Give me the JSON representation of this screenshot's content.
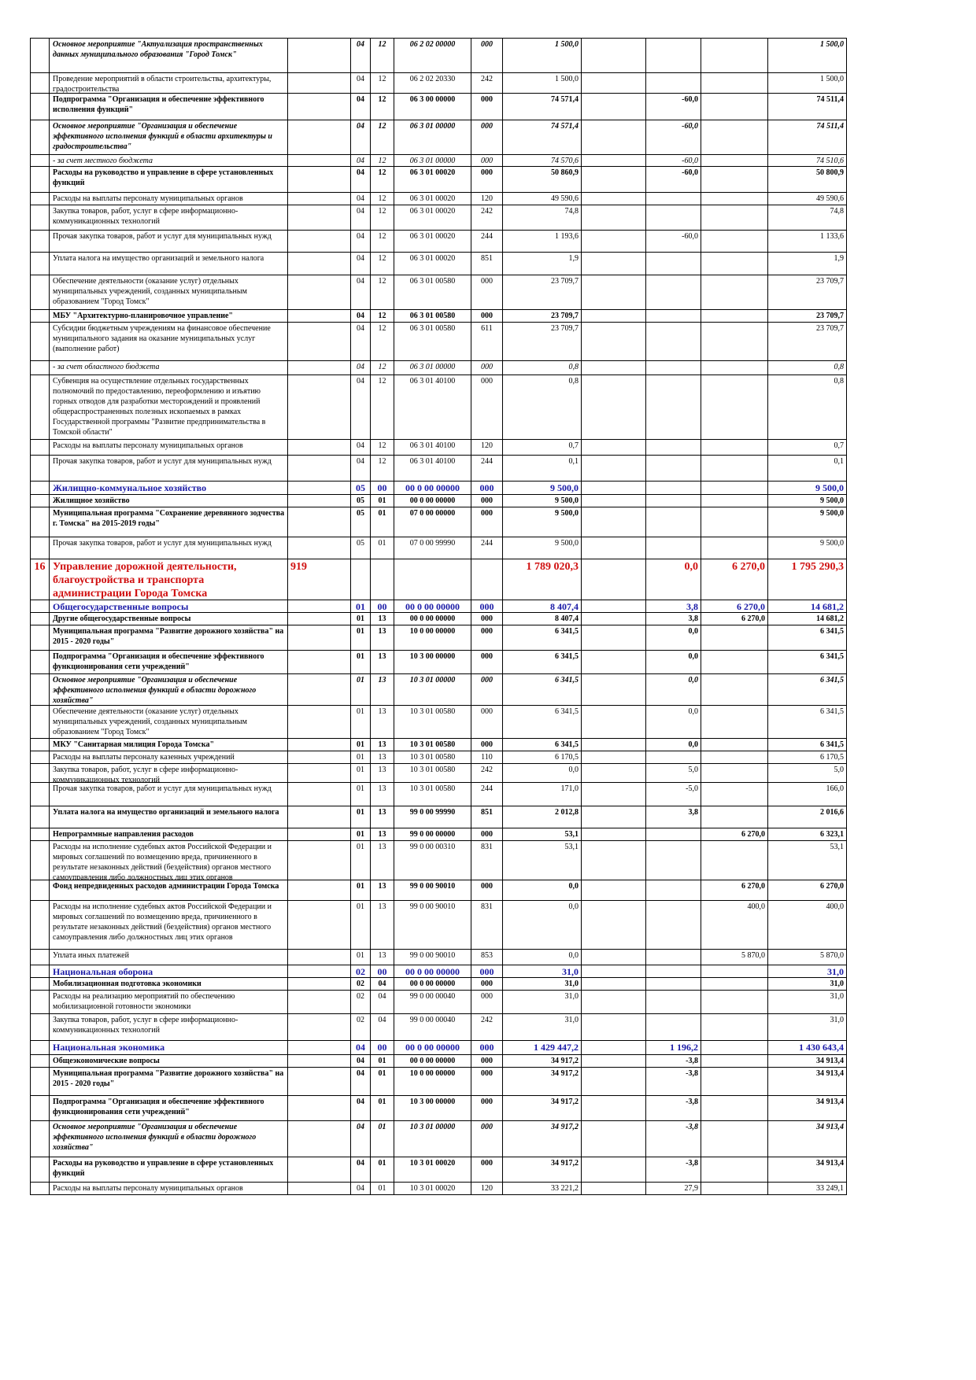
{
  "table": {
    "rows": [
      [
        null,
        "Основное мероприятие \"Актуализация пространственных данных муниципального образования \"Город Томск\"",
        null,
        "04",
        "12",
        "06 2 02 00000",
        "000",
        "1 500,0",
        null,
        null,
        null,
        "1 500,0"
      ],
      [
        null,
        "Проведение мероприятий в области строительства, архитектуры, градостроительства",
        null,
        "04",
        "12",
        "06 2 02 20330",
        "242",
        "1 500,0",
        null,
        null,
        null,
        "1 500,0"
      ],
      [
        null,
        "Подпрограмма \"Организация и обеспечение эффективного исполнения функций\"",
        null,
        "04",
        "12",
        "06 3 00 00000",
        "000",
        "74 571,4",
        null,
        "-60,0",
        null,
        "74 511,4"
      ],
      [
        null,
        "Основное мероприятие \"Организация и обеспечение эффективного исполнения функций в области архитектуры и градостроительства\"",
        null,
        "04",
        "12",
        "06 3 01 00000",
        "000",
        "74 571,4",
        null,
        "-60,0",
        null,
        "74 511,4"
      ],
      [
        null,
        "- за счет местного бюджета",
        null,
        "04",
        "12",
        "06 3 01 00000",
        "000",
        "74 570,6",
        null,
        "-60,0",
        null,
        "74 510,6"
      ],
      [
        null,
        "Расходы на руководство и управление в сфере установленных функций",
        null,
        "04",
        "12",
        "06 3 01 00020",
        "000",
        "50 860,9",
        null,
        "-60,0",
        null,
        "50 800,9"
      ],
      [
        null,
        "Расходы на выплаты персоналу муниципальных органов",
        null,
        "04",
        "12",
        "06 3 01 00020",
        "120",
        "49 590,6",
        null,
        null,
        null,
        "49 590,6"
      ],
      [
        null,
        "Закупка товаров, работ, услуг в сфере информационно-коммуникационных технологий",
        null,
        "04",
        "12",
        "06 3 01 00020",
        "242",
        "74,8",
        null,
        null,
        null,
        "74,8"
      ],
      [
        null,
        "Прочая закупка товаров, работ и услуг для муниципальных нужд",
        null,
        "04",
        "12",
        "06 3 01 00020",
        "244",
        "1 193,6",
        null,
        "-60,0",
        null,
        "1 133,6"
      ],
      [
        null,
        "Уплата налога на имущество организаций и земельного налога",
        null,
        "04",
        "12",
        "06 3 01 00020",
        "851",
        "1,9",
        null,
        null,
        null,
        "1,9"
      ],
      [
        null,
        "Обеспечение деятельности (оказание услуг) отдельных муниципальных учреждений, созданных муниципальным образованием \"Город Томск\"",
        null,
        "04",
        "12",
        "06 3 01 00580",
        "000",
        "23 709,7",
        null,
        null,
        null,
        "23 709,7"
      ],
      [
        null,
        "МБУ \"Архитектурно-планировочное управление\"",
        null,
        "04",
        "12",
        "06 3 01 00580",
        "000",
        "23 709,7",
        null,
        null,
        null,
        "23 709,7"
      ],
      [
        null,
        "Субсидии бюджетным учреждениям на финансовое обеспечение муниципального задания на оказание муниципальных услуг (выполнение работ)",
        null,
        "04",
        "12",
        "06 3 01 00580",
        "611",
        "23 709,7",
        null,
        null,
        null,
        "23 709,7"
      ],
      [
        null,
        "- за счет областного бюджета",
        null,
        "04",
        "12",
        "06 3 01 00000",
        "000",
        "0,8",
        null,
        null,
        null,
        "0,8"
      ],
      [
        null,
        "Субвенция на осуществление отдельных государственных полномочий по предоставлению, переоформлению и изъятию горных отводов для разработки месторождений и проявлений общераспространенных полезных ископаемых в рамках Государственной программы \"Развитие предпринимательства в Томской области\"",
        null,
        "04",
        "12",
        "06 3 01 40100",
        "000",
        "0,8",
        null,
        null,
        null,
        "0,8"
      ],
      [
        null,
        "Расходы на выплаты персоналу муниципальных органов",
        null,
        "04",
        "12",
        "06 3 01 40100",
        "120",
        "0,7",
        null,
        null,
        null,
        "0,7"
      ],
      [
        null,
        "Прочая закупка товаров, работ и услуг для муниципальных нужд",
        null,
        "04",
        "12",
        "06 3 01 40100",
        "244",
        "0,1",
        null,
        null,
        null,
        "0,1"
      ],
      [
        null,
        "Жилищно-коммунальное хозяйство",
        null,
        "05",
        "00",
        "00 0 00 00000",
        "000",
        "9 500,0",
        null,
        null,
        null,
        "9 500,0"
      ],
      [
        null,
        "Жилищное хозяйство",
        null,
        "05",
        "01",
        "00 0 00 00000",
        "000",
        "9 500,0",
        null,
        null,
        null,
        "9 500,0"
      ],
      [
        null,
        "Муниципальная программа \"Сохранение деревянного зодчества г. Томска\" на 2015-2019 годы\"",
        null,
        "05",
        "01",
        "07 0 00 00000",
        "000",
        "9 500,0",
        null,
        null,
        null,
        "9 500,0"
      ],
      [
        null,
        "Прочая закупка товаров, работ и услуг для муниципальных нужд",
        null,
        "05",
        "01",
        "07 0 00 99990",
        "244",
        "9 500,0",
        null,
        null,
        null,
        "9 500,0"
      ],
      [
        "16",
        "Управление дорожной деятельности, благоустройства и транспорта администрации Города Томска",
        "919",
        null,
        null,
        null,
        null,
        "1 789 020,3",
        null,
        "0,0",
        "6 270,0",
        "1 795 290,3"
      ],
      [
        null,
        "Общегосударственные вопросы",
        null,
        "01",
        "00",
        "00 0 00 00000",
        "000",
        "8 407,4",
        null,
        "3,8",
        "6 270,0",
        "14 681,2"
      ],
      [
        null,
        "Другие общегосударственные вопросы",
        null,
        "01",
        "13",
        "00 0 00 00000",
        "000",
        "8 407,4",
        null,
        "3,8",
        "6 270,0",
        "14 681,2"
      ],
      [
        null,
        "Муниципальная программа \"Развитие дорожного хозяйства\" на 2015 - 2020 годы\"",
        null,
        "01",
        "13",
        "10 0 00 00000",
        "000",
        "6 341,5",
        null,
        "0,0",
        null,
        "6 341,5"
      ],
      [
        null,
        "Подпрограмма \"Организация и обеспечение эффективного функционирования сети учреждений\"",
        null,
        "01",
        "13",
        "10 3 00 00000",
        "000",
        "6 341,5",
        null,
        "0,0",
        null,
        "6 341,5"
      ],
      [
        null,
        "Основное мероприятие \"Организация и обеспечение эффективного исполнения функций в области дорожного хозяйства\"",
        null,
        "01",
        "13",
        "10 3 01 00000",
        "000",
        "6 341,5",
        null,
        "0,0",
        null,
        "6 341,5"
      ],
      [
        null,
        "Обеспечение деятельности (оказание услуг) отдельных муниципальных учреждений, созданных муниципальным образованием \"Город Томск\"",
        null,
        "01",
        "13",
        "10 3 01 00580",
        "000",
        "6 341,5",
        null,
        "0,0",
        null,
        "6 341,5"
      ],
      [
        null,
        "МКУ \"Санитарная милиция Города Томска\"",
        null,
        "01",
        "13",
        "10 3 01 00580",
        "000",
        "6 341,5",
        null,
        "0,0",
        null,
        "6 341,5"
      ],
      [
        null,
        "Расходы на выплаты персоналу казенных учреждений",
        null,
        "01",
        "13",
        "10 3 01 00580",
        "110",
        "6 170,5",
        null,
        null,
        null,
        "6 170,5"
      ],
      [
        null,
        "Закупка товаров, работ, услуг в сфере информационно-коммуникационных технологий",
        null,
        "01",
        "13",
        "10 3 01 00580",
        "242",
        "0,0",
        null,
        "5,0",
        null,
        "5,0"
      ],
      [
        null,
        "Прочая закупка товаров, работ и услуг для муниципальных нужд",
        null,
        "01",
        "13",
        "10 3 01 00580",
        "244",
        "171,0",
        null,
        "-5,0",
        null,
        "166,0"
      ],
      [
        null,
        "Уплата налога на имущество организаций и земельного налога",
        null,
        "01",
        "13",
        "99 0 00 99990",
        "851",
        "2 012,8",
        null,
        "3,8",
        null,
        "2 016,6"
      ],
      [
        null,
        "Непрограммные направления расходов",
        null,
        "01",
        "13",
        "99 0 00 00000",
        "000",
        "53,1",
        null,
        null,
        "6 270,0",
        "6 323,1"
      ],
      [
        null,
        "Расходы на исполнение судебных актов Российской Федерации и мировых соглашений по возмещению вреда, причиненного в результате незаконных действий (бездействия) органов местного самоуправления либо должностных лиц этих органов",
        null,
        "01",
        "13",
        "99 0 00 00310",
        "831",
        "53,1",
        null,
        null,
        null,
        "53,1"
      ],
      [
        null,
        "Фонд непредвиденных расходов администрации Города Томска",
        null,
        "01",
        "13",
        "99 0 00 90010",
        "000",
        "0,0",
        null,
        null,
        "6 270,0",
        "6 270,0"
      ],
      [
        null,
        "Расходы на исполнение судебных актов Российской Федерации и мировых соглашений по возмещению вреда, причиненного в результате незаконных действий (бездействия) органов местного самоуправления либо должностных лиц этих органов",
        null,
        "01",
        "13",
        "99 0 00 90010",
        "831",
        "0,0",
        null,
        null,
        "400,0",
        "400,0"
      ],
      [
        null,
        "Уплата иных платежей",
        null,
        "01",
        "13",
        "99 0 00 90010",
        "853",
        "0,0",
        null,
        null,
        "5 870,0",
        "5 870,0"
      ],
      [
        null,
        "Национальная оборона",
        null,
        "02",
        "00",
        "00 0 00 00000",
        "000",
        "31,0",
        null,
        null,
        null,
        "31,0"
      ],
      [
        null,
        "Мобилизационная подготовка экономики",
        null,
        "02",
        "04",
        "00 0 00 00000",
        "000",
        "31,0",
        null,
        null,
        null,
        "31,0"
      ],
      [
        null,
        "Расходы на реализацию мероприятий по обеспечению мобилизационной готовности экономики",
        null,
        "02",
        "04",
        "99 0 00 00040",
        "000",
        "31,0",
        null,
        null,
        null,
        "31,0"
      ],
      [
        null,
        "Закупка товаров, работ, услуг в сфере информационно-коммуникационных технологий",
        null,
        "02",
        "04",
        "99 0 00 00040",
        "242",
        "31,0",
        null,
        null,
        null,
        "31,0"
      ],
      [
        null,
        "Национальная экономика",
        null,
        "04",
        "00",
        "00 0 00 00000",
        "000",
        "1 429 447,2",
        null,
        "1 196,2",
        null,
        "1 430 643,4"
      ],
      [
        null,
        "Общеэкономические вопросы",
        null,
        "04",
        "01",
        "00 0 00 00000",
        "000",
        "34 917,2",
        null,
        "-3,8",
        null,
        "34 913,4"
      ],
      [
        null,
        "Муниципальная программа \"Развитие дорожного хозяйства\" на 2015 - 2020 годы\"",
        null,
        "04",
        "01",
        "10 0 00 00000",
        "000",
        "34 917,2",
        null,
        "-3,8",
        null,
        "34 913,4"
      ],
      [
        null,
        "Подпрограмма \"Организация и обеспечение эффективного функционирования сети учреждений\"",
        null,
        "04",
        "01",
        "10 3 00 00000",
        "000",
        "34 917,2",
        null,
        "-3,8",
        null,
        "34 913,4"
      ],
      [
        null,
        "Основное мероприятие \"Организация и обеспечение эффективного исполнения функций в области дорожного хозяйства\"",
        null,
        "04",
        "01",
        "10 3 01 00000",
        "000",
        "34 917,2",
        null,
        "-3,8",
        null,
        "34 913,4"
      ],
      [
        null,
        "Расходы на руководство и управление в сфере установленных функций",
        null,
        "04",
        "01",
        "10 3 01 00020",
        "000",
        "34 917,2",
        null,
        "-3,8",
        null,
        "34 913,4"
      ],
      [
        null,
        "Расходы на выплаты персоналу муниципальных органов",
        null,
        "04",
        "01",
        "10 3 01 00020",
        "120",
        "33 221,2",
        null,
        "27,9",
        null,
        "33 249,1"
      ]
    ],
    "row_styles": [
      "bi",
      "n",
      "b",
      "bi",
      "i",
      "b",
      "n",
      "n",
      "n",
      "n",
      "n",
      "b",
      "n",
      "i",
      "n",
      "n",
      "n",
      "blue",
      "b",
      "b",
      "n",
      "red",
      "blue",
      "b",
      "b",
      "b",
      "bi",
      "n",
      "b",
      "n",
      "n",
      "n",
      "b",
      "b",
      "n",
      "b",
      "n",
      "n",
      "blue",
      "b",
      "n",
      "n",
      "blue",
      "b",
      "b",
      "b",
      "bi",
      "b",
      "n"
    ]
  }
}
